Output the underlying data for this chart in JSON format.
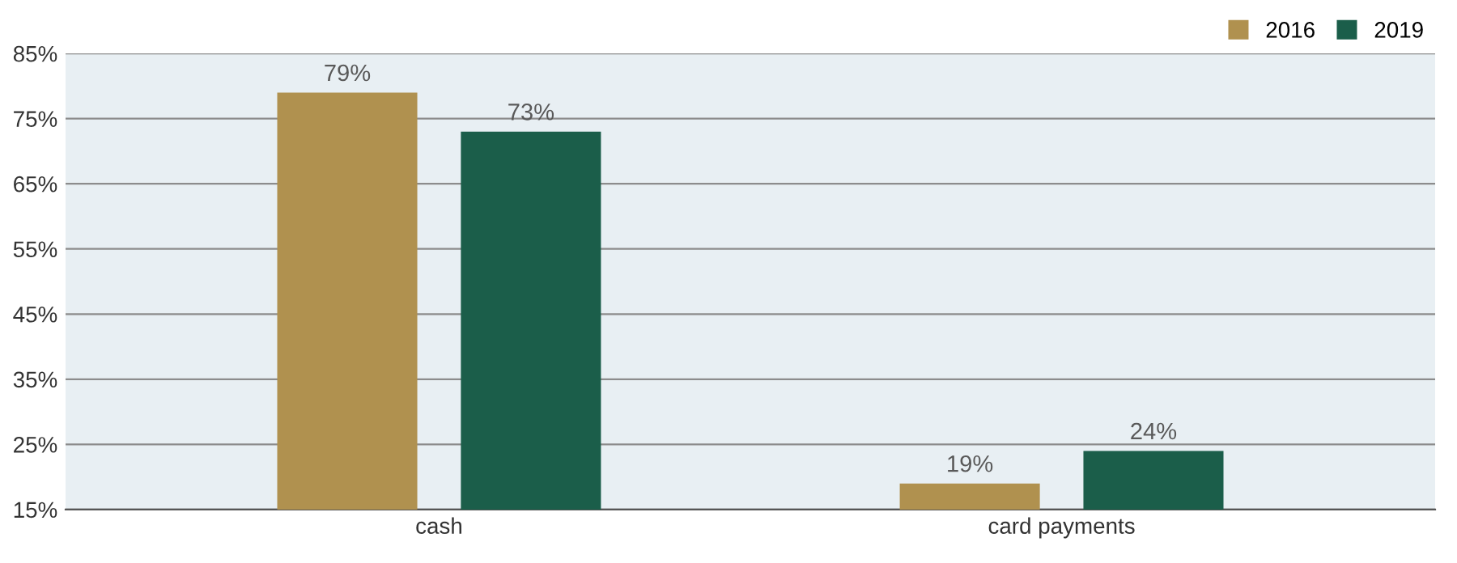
{
  "chart_data": {
    "type": "bar",
    "categories": [
      "cash",
      "card payments"
    ],
    "series": [
      {
        "name": "2016",
        "color": "#b0914f",
        "values": [
          79,
          19
        ],
        "value_labels": [
          "79%",
          "19%"
        ]
      },
      {
        "name": "2019",
        "color": "#1b5e4a",
        "values": [
          73,
          24
        ],
        "value_labels": [
          "73%",
          "24%"
        ]
      }
    ],
    "ylim": [
      15,
      85
    ],
    "yticks": [
      {
        "value": 15,
        "label": "15%"
      },
      {
        "value": 25,
        "label": "25%"
      },
      {
        "value": 35,
        "label": "35%"
      },
      {
        "value": 45,
        "label": "45%"
      },
      {
        "value": 55,
        "label": "55%"
      },
      {
        "value": 65,
        "label": "65%"
      },
      {
        "value": 75,
        "label": "75%"
      },
      {
        "value": 85,
        "label": "85%"
      }
    ],
    "grid": "y",
    "legend": "top right"
  }
}
